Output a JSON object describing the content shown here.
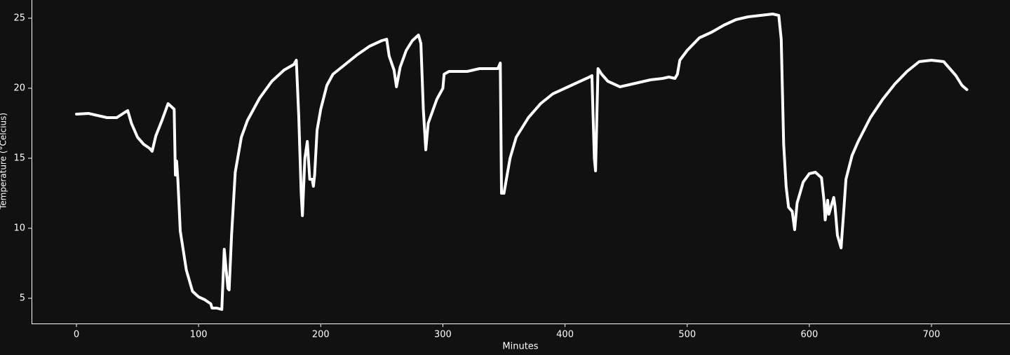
{
  "chart_data": {
    "type": "line",
    "x_label": "Minutes",
    "y_label": "Temperature (°Celcius)",
    "color": "#ffffff",
    "xlim": [
      -36.75,
      764.3
    ],
    "ylim": [
      3.2,
      26.3
    ],
    "xticks": [
      0,
      100,
      200,
      300,
      400,
      500,
      600,
      700
    ],
    "yticks": [
      5,
      10,
      15,
      20,
      25
    ],
    "x": [
      0,
      10,
      20,
      25,
      33,
      40,
      42,
      45,
      50,
      55,
      60,
      62,
      65,
      70,
      75,
      80,
      81,
      82,
      83,
      85,
      90,
      95,
      100,
      105,
      110,
      111,
      115,
      119,
      121,
      124,
      125,
      127,
      130,
      135,
      140,
      145,
      150,
      160,
      170,
      178,
      180,
      182,
      184,
      185,
      187,
      189,
      191,
      193,
      194,
      195,
      197,
      200,
      205,
      210,
      220,
      230,
      240,
      250,
      254,
      256,
      260,
      262,
      265,
      270,
      275,
      280,
      282,
      284,
      286,
      288,
      295,
      300,
      301,
      305,
      320,
      330,
      345,
      347,
      348,
      350,
      355,
      360,
      370,
      380,
      390,
      400,
      410,
      420,
      422,
      424,
      425,
      427,
      430,
      435,
      440,
      445,
      450,
      460,
      470,
      480,
      485,
      490,
      492,
      494,
      500,
      510,
      520,
      530,
      540,
      550,
      560,
      570,
      575,
      577,
      579,
      581,
      583,
      586,
      588,
      590,
      595,
      600,
      605,
      610,
      612,
      613,
      615,
      616,
      620,
      621,
      623,
      626,
      628,
      630,
      635,
      640,
      650,
      660,
      670,
      680,
      690,
      700,
      710,
      715,
      720,
      725,
      729
    ],
    "values": [
      18.15,
      18.2,
      18.0,
      17.9,
      17.9,
      18.3,
      18.4,
      17.5,
      16.5,
      16.0,
      15.7,
      15.5,
      16.6,
      17.7,
      18.9,
      18.5,
      13.8,
      14.8,
      13.5,
      9.8,
      7.0,
      5.5,
      5.1,
      4.9,
      4.6,
      4.3,
      4.3,
      4.2,
      8.5,
      5.7,
      5.6,
      9.5,
      14.0,
      16.5,
      17.7,
      18.5,
      19.3,
      20.5,
      21.3,
      21.7,
      22.0,
      18,
      12.5,
      10.9,
      15,
      16.2,
      13.5,
      13.5,
      13.0,
      13.8,
      17,
      18.5,
      20.2,
      21,
      21.7,
      22.4,
      23.0,
      23.4,
      23.5,
      22.3,
      21.3,
      20.1,
      21.5,
      22.7,
      23.4,
      23.8,
      23.2,
      18.5,
      15.6,
      17.5,
      19.2,
      20,
      21.0,
      21.2,
      21.2,
      21.4,
      21.4,
      21.8,
      12.5,
      12.5,
      15,
      16.5,
      17.9,
      18.9,
      19.6,
      20.0,
      20.4,
      20.8,
      20.9,
      15,
      14.1,
      21.4,
      21.0,
      20.5,
      20.3,
      20.1,
      20.2,
      20.4,
      20.6,
      20.7,
      20.8,
      20.7,
      21.0,
      22.0,
      22.7,
      23.6,
      24.0,
      24.5,
      24.9,
      25.1,
      25.2,
      25.3,
      25.2,
      23.5,
      16,
      13,
      11.5,
      11.2,
      9.9,
      11.8,
      13.3,
      13.9,
      14.0,
      13.6,
      12,
      10.6,
      12,
      11,
      12.2,
      11.6,
      9.5,
      8.6,
      11,
      13.5,
      15.2,
      16.2,
      17.9,
      19.2,
      20.3,
      21.2,
      21.9,
      22.0,
      21.9,
      21.4,
      20.9,
      20.2,
      19.9
    ]
  }
}
